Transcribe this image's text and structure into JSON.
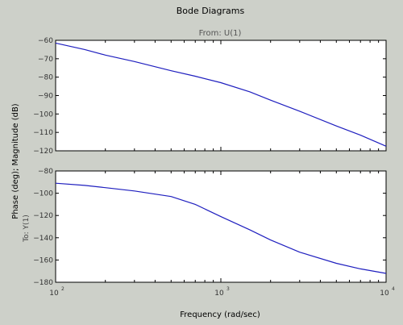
{
  "figure": {
    "title": "Bode Diagrams",
    "from_label": "From: U(1)",
    "to_label": "To: Y(1)",
    "xlabel": "Frequency (rad/sec)",
    "ylabel": "Phase (deg); Magnitude (dB)",
    "colors": {
      "background": "#cdd0c9",
      "line": "#1f1fbf"
    }
  },
  "chart_data": [
    {
      "type": "line",
      "name_panel": "magnitude",
      "xscale": "log",
      "xlim": [
        100,
        10000
      ],
      "ylim": [
        -120,
        -60
      ],
      "yticks": [
        -60,
        -70,
        -80,
        -90,
        -100,
        -110,
        -120
      ],
      "ytick_labels": [
        "−60",
        "−70",
        "−80",
        "−90",
        "−100",
        "−110",
        "−120"
      ],
      "grid": false,
      "series": [
        {
          "x": [
            100,
            150,
            200,
            300,
            500,
            700,
            1000,
            1500,
            2000,
            3000,
            5000,
            7000,
            10000
          ],
          "y": [
            -61.5,
            -65,
            -68,
            -71.5,
            -76.5,
            -79.5,
            -83,
            -88,
            -92.5,
            -98.5,
            -106.5,
            -111.5,
            -117.5
          ]
        }
      ]
    },
    {
      "type": "line",
      "name_panel": "phase",
      "xscale": "log",
      "xlim": [
        100,
        10000
      ],
      "ylim": [
        -180,
        -80
      ],
      "yticks": [
        -80,
        -100,
        -120,
        -140,
        -160,
        -180
      ],
      "ytick_labels": [
        "−80",
        "−100",
        "−120",
        "−140",
        "−160",
        "−180"
      ],
      "xticks": [
        100,
        1000,
        10000
      ],
      "xtick_base": "10",
      "xtick_exponents": [
        "2",
        "3",
        "4"
      ],
      "grid": false,
      "series": [
        {
          "x": [
            100,
            150,
            200,
            300,
            500,
            700,
            1000,
            1500,
            2000,
            3000,
            5000,
            7000,
            10000
          ],
          "y": [
            -91,
            -93,
            -95,
            -98,
            -103,
            -110,
            -121,
            -133,
            -142,
            -153,
            -163,
            -168,
            -172
          ]
        }
      ]
    }
  ]
}
